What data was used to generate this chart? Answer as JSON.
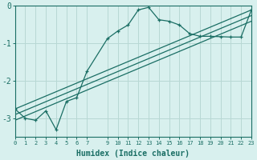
{
  "xlabel": "Humidex (Indice chaleur)",
  "bg_color": "#d8f0ee",
  "grid_color": "#b8d8d4",
  "line_color": "#1a6e64",
  "main_x": [
    0,
    1,
    2,
    3,
    4,
    5,
    6,
    7,
    9,
    10,
    11,
    12,
    13,
    14,
    15,
    16,
    17,
    18,
    19,
    20,
    21,
    22,
    23
  ],
  "main_y": [
    -2.75,
    -3.0,
    -3.05,
    -2.8,
    -3.3,
    -2.55,
    -2.45,
    -1.75,
    -0.88,
    -0.68,
    -0.52,
    -0.12,
    -0.05,
    -0.38,
    -0.42,
    -0.52,
    -0.75,
    -0.82,
    -0.82,
    -0.83,
    -0.84,
    -0.84,
    -0.12
  ],
  "line2_x": [
    0,
    23
  ],
  "line2_y": [
    -2.75,
    -0.12
  ],
  "line3_x": [
    0,
    23
  ],
  "line3_y": [
    -2.9,
    -0.27
  ],
  "line4_x": [
    0,
    23
  ],
  "line4_y": [
    -3.05,
    -0.42
  ],
  "xlim": [
    0,
    23
  ],
  "ylim": [
    -3.5,
    0.0
  ],
  "yticks": [
    0,
    -1,
    -2,
    -3
  ],
  "xticks": [
    0,
    1,
    2,
    3,
    4,
    5,
    6,
    7,
    9,
    10,
    11,
    12,
    13,
    14,
    15,
    16,
    17,
    18,
    19,
    20,
    21,
    22,
    23
  ]
}
